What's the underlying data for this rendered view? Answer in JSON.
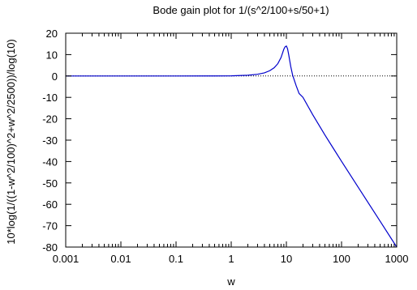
{
  "chart_data": {
    "type": "line",
    "title": "Bode gain plot for 1/(s^2/100+s/50+1)",
    "xlabel": "w",
    "ylabel": "10*log(1/((1-w^2/100)^2+w^2/2500))/log(10)",
    "xscale": "log",
    "xlim": [
      0.001,
      1000
    ],
    "ylim": [
      -80,
      20
    ],
    "x_ticks": [
      {
        "value": 0.001,
        "label": "0.001"
      },
      {
        "value": 0.01,
        "label": "0.01"
      },
      {
        "value": 0.1,
        "label": "0.1"
      },
      {
        "value": 1,
        "label": "1"
      },
      {
        "value": 10,
        "label": "10"
      },
      {
        "value": 100,
        "label": "100"
      },
      {
        "value": 1000,
        "label": "1000"
      }
    ],
    "y_ticks": [
      {
        "value": 20,
        "label": "20"
      },
      {
        "value": 10,
        "label": "10"
      },
      {
        "value": 0,
        "label": "0"
      },
      {
        "value": -10,
        "label": "-10"
      },
      {
        "value": -20,
        "label": "-20"
      },
      {
        "value": -30,
        "label": "-30"
      },
      {
        "value": -40,
        "label": "-40"
      },
      {
        "value": -50,
        "label": "-50"
      },
      {
        "value": -60,
        "label": "-60"
      },
      {
        "value": -70,
        "label": "-70"
      },
      {
        "value": -80,
        "label": "-80"
      }
    ],
    "grid": false,
    "legend": "none",
    "zero_line": {
      "value": 0,
      "style": "dotted",
      "color": "#000000"
    },
    "series": [
      {
        "color": "#0000cc",
        "points": [
          [
            0.001,
            0.0
          ],
          [
            0.01,
            0.0
          ],
          [
            0.1,
            0.0
          ],
          [
            0.5,
            0.02
          ],
          [
            1,
            0.08
          ],
          [
            2,
            0.34
          ],
          [
            3,
            0.79
          ],
          [
            4,
            1.47
          ],
          [
            5,
            2.48
          ],
          [
            6,
            3.84
          ],
          [
            7,
            5.76
          ],
          [
            8,
            8.62
          ],
          [
            9,
            12.56
          ],
          [
            9.5,
            13.68
          ],
          [
            10,
            13.98
          ],
          [
            10.5,
            12.75
          ],
          [
            11,
            10.04
          ],
          [
            12,
            4.42
          ],
          [
            13,
            0.32
          ],
          [
            15,
            -4.45
          ],
          [
            17,
            -8.19
          ],
          [
            20,
            -10.0
          ],
          [
            30,
            -18.1
          ],
          [
            50,
            -27.6
          ],
          [
            70,
            -33.6
          ],
          [
            100,
            -39.9
          ],
          [
            200,
            -52.0
          ],
          [
            500,
            -67.9
          ],
          [
            1000,
            -80.0
          ]
        ]
      }
    ]
  }
}
